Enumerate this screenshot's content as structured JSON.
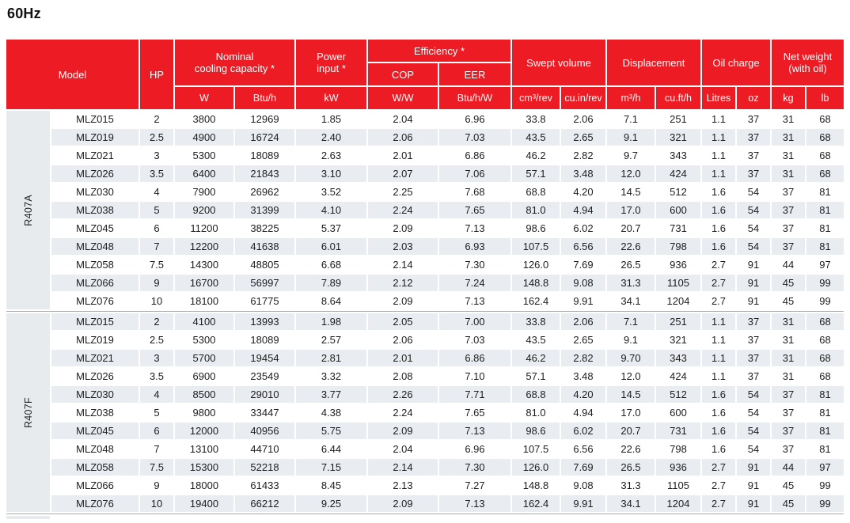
{
  "page_title": "60Hz",
  "colors": {
    "header_red": "#ED1C24",
    "row_stripe": "#E9EDF1",
    "refrigerant_cell": "#E8EBED",
    "section_divider": "#A5ABB0"
  },
  "table": {
    "header": {
      "model": "Model",
      "hp": "HP",
      "nominal_line1": "Nominal",
      "nominal_line2": "cooling capacity *",
      "power_line1": "Power",
      "power_line2": "input *",
      "efficiency": "Efficiency *",
      "cop": "COP",
      "eer": "EER",
      "swept_volume": "Swept volume",
      "displacement": "Displacement",
      "oil_charge": "Oil charge",
      "weight_line1": "Net weight",
      "weight_line2": "(with oil)"
    },
    "units": {
      "w": "W",
      "btuh": "Btu/h",
      "kw": "kW",
      "ww": "W/W",
      "btuhw": "Btu/h/W",
      "cm3rev": "cm³/rev",
      "cuinrev": "cu.in/rev",
      "m3h": "m³/h",
      "cufth": "cu.ft/h",
      "litres": "Litres",
      "oz": "oz",
      "kg": "kg",
      "lb": "lb"
    },
    "columns": [
      "Model",
      "HP",
      "W",
      "Btu/h",
      "kW",
      "W/W (COP)",
      "Btu/h/W (EER)",
      "cm³/rev",
      "cu.in/rev",
      "m³/h",
      "cu.ft/h",
      "Litres",
      "oz",
      "kg",
      "lb"
    ],
    "sections": [
      {
        "refrigerant": "R407A",
        "rows": [
          [
            "MLZ015",
            "2",
            "3800",
            "12969",
            "1.85",
            "2.04",
            "6.96",
            "33.8",
            "2.06",
            "7.1",
            "251",
            "1.1",
            "37",
            "31",
            "68"
          ],
          [
            "MLZ019",
            "2.5",
            "4900",
            "16724",
            "2.40",
            "2.06",
            "7.03",
            "43.5",
            "2.65",
            "9.1",
            "321",
            "1.1",
            "37",
            "31",
            "68"
          ],
          [
            "MLZ021",
            "3",
            "5300",
            "18089",
            "2.63",
            "2.01",
            "6.86",
            "46.2",
            "2.82",
            "9.7",
            "343",
            "1.1",
            "37",
            "31",
            "68"
          ],
          [
            "MLZ026",
            "3.5",
            "6400",
            "21843",
            "3.10",
            "2.07",
            "7.06",
            "57.1",
            "3.48",
            "12.0",
            "424",
            "1.1",
            "37",
            "31",
            "68"
          ],
          [
            "MLZ030",
            "4",
            "7900",
            "26962",
            "3.52",
            "2.25",
            "7.68",
            "68.8",
            "4.20",
            "14.5",
            "512",
            "1.6",
            "54",
            "37",
            "81"
          ],
          [
            "MLZ038",
            "5",
            "9200",
            "31399",
            "4.10",
            "2.24",
            "7.65",
            "81.0",
            "4.94",
            "17.0",
            "600",
            "1.6",
            "54",
            "37",
            "81"
          ],
          [
            "MLZ045",
            "6",
            "11200",
            "38225",
            "5.37",
            "2.09",
            "7.13",
            "98.6",
            "6.02",
            "20.7",
            "731",
            "1.6",
            "54",
            "37",
            "81"
          ],
          [
            "MLZ048",
            "7",
            "12200",
            "41638",
            "6.01",
            "2.03",
            "6.93",
            "107.5",
            "6.56",
            "22.6",
            "798",
            "1.6",
            "54",
            "37",
            "81"
          ],
          [
            "MLZ058",
            "7.5",
            "14300",
            "48805",
            "6.68",
            "2.14",
            "7.30",
            "126.0",
            "7.69",
            "26.5",
            "936",
            "2.7",
            "91",
            "44",
            "97"
          ],
          [
            "MLZ066",
            "9",
            "16700",
            "56997",
            "7.89",
            "2.12",
            "7.24",
            "148.8",
            "9.08",
            "31.3",
            "1105",
            "2.7",
            "91",
            "45",
            "99"
          ],
          [
            "MLZ076",
            "10",
            "18100",
            "61775",
            "8.64",
            "2.09",
            "7.13",
            "162.4",
            "9.91",
            "34.1",
            "1204",
            "2.7",
            "91",
            "45",
            "99"
          ]
        ]
      },
      {
        "refrigerant": "R407F",
        "rows": [
          [
            "MLZ015",
            "2",
            "4100",
            "13993",
            "1.98",
            "2.05",
            "7.00",
            "33.8",
            "2.06",
            "7.1",
            "251",
            "1.1",
            "37",
            "31",
            "68"
          ],
          [
            "MLZ019",
            "2.5",
            "5300",
            "18089",
            "2.57",
            "2.06",
            "7.03",
            "43.5",
            "2.65",
            "9.1",
            "321",
            "1.1",
            "37",
            "31",
            "68"
          ],
          [
            "MLZ021",
            "3",
            "5700",
            "19454",
            "2.81",
            "2.01",
            "6.86",
            "46.2",
            "2.82",
            "9.70",
            "343",
            "1.1",
            "37",
            "31",
            "68"
          ],
          [
            "MLZ026",
            "3.5",
            "6900",
            "23549",
            "3.32",
            "2.08",
            "7.10",
            "57.1",
            "3.48",
            "12.0",
            "424",
            "1.1",
            "37",
            "31",
            "68"
          ],
          [
            "MLZ030",
            "4",
            "8500",
            "29010",
            "3.77",
            "2.26",
            "7.71",
            "68.8",
            "4.20",
            "14.5",
            "512",
            "1.6",
            "54",
            "37",
            "81"
          ],
          [
            "MLZ038",
            "5",
            "9800",
            "33447",
            "4.38",
            "2.24",
            "7.65",
            "81.0",
            "4.94",
            "17.0",
            "600",
            "1.6",
            "54",
            "37",
            "81"
          ],
          [
            "MLZ045",
            "6",
            "12000",
            "40956",
            "5.75",
            "2.09",
            "7.13",
            "98.6",
            "6.02",
            "20.7",
            "731",
            "1.6",
            "54",
            "37",
            "81"
          ],
          [
            "MLZ048",
            "7",
            "13100",
            "44710",
            "6.44",
            "2.04",
            "6.96",
            "107.5",
            "6.56",
            "22.6",
            "798",
            "1.6",
            "54",
            "37",
            "81"
          ],
          [
            "MLZ058",
            "7.5",
            "15300",
            "52218",
            "7.15",
            "2.14",
            "7.30",
            "126.0",
            "7.69",
            "26.5",
            "936",
            "2.7",
            "91",
            "44",
            "97"
          ],
          [
            "MLZ066",
            "9",
            "18000",
            "61433",
            "8.45",
            "2.13",
            "7.27",
            "148.8",
            "9.08",
            "31.3",
            "1105",
            "2.7",
            "91",
            "45",
            "99"
          ],
          [
            "MLZ076",
            "10",
            "19400",
            "66212",
            "9.25",
            "2.09",
            "7.13",
            "162.4",
            "9.91",
            "34.1",
            "1204",
            "2.7",
            "91",
            "45",
            "99"
          ]
        ]
      }
    ]
  }
}
